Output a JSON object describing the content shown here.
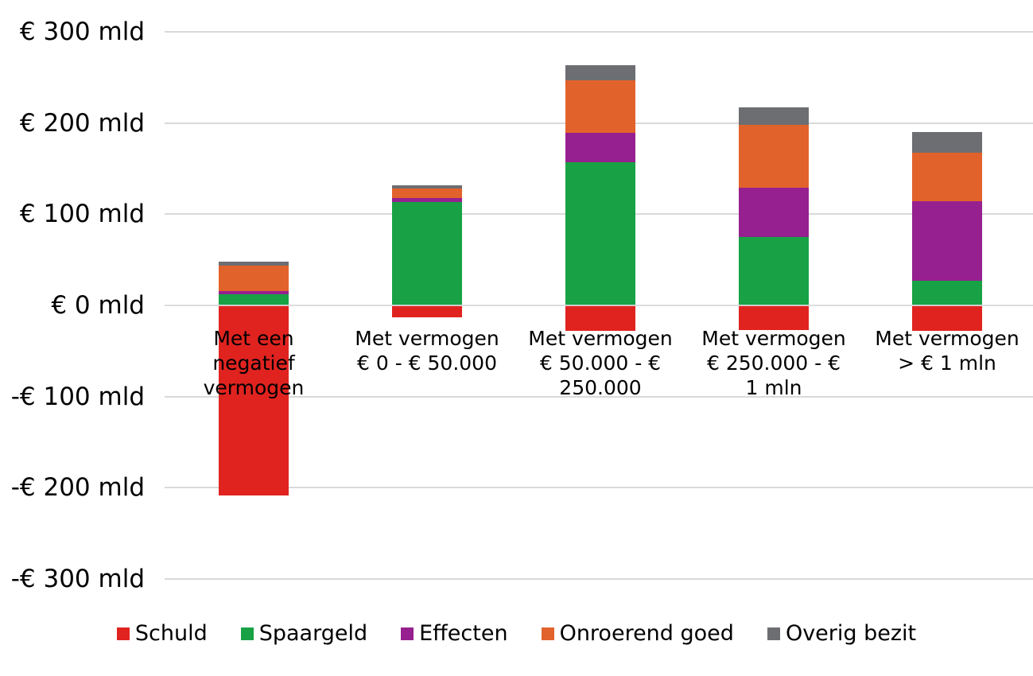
{
  "chart_data": {
    "type": "bar",
    "stacked": true,
    "title": "",
    "xlabel": "",
    "ylabel": "",
    "unit": "€ mld",
    "grid": true,
    "legend_position": "bottom",
    "ylim": [
      -300,
      300
    ],
    "categories": [
      "Met een negatief vermogen",
      "Met vermogen € 0 - € 50.000",
      "Met vermogen € 50.000 - € 250.000",
      "Met vermogen € 250.000 - € 1 mln",
      "Met vermogen > € 1 mln"
    ],
    "category_label_lines": [
      [
        "Met een",
        "negatief",
        "vermogen"
      ],
      [
        "Met vermogen",
        "€ 0 - € 50.000"
      ],
      [
        "Met vermogen",
        "€ 50.000 - €",
        "250.000"
      ],
      [
        "Met vermogen",
        "€ 250.000 - €",
        "1 mln"
      ],
      [
        "Met vermogen",
        "> € 1 mln"
      ]
    ],
    "series": [
      {
        "key": "schuld",
        "name": "Schuld",
        "color": "#e0231f",
        "values": [
          -208,
          -13,
          -28,
          -27,
          -28
        ]
      },
      {
        "key": "spaargeld",
        "name": "Spaargeld",
        "color": "#18a245",
        "values": [
          12,
          113,
          157,
          75,
          27
        ]
      },
      {
        "key": "effecten",
        "name": "Effecten",
        "color": "#96208f",
        "values": [
          4,
          5,
          32,
          54,
          87
        ]
      },
      {
        "key": "onroerend-goed",
        "name": "Onroerend goed",
        "color": "#e2622b",
        "values": [
          28,
          10,
          58,
          69,
          53
        ]
      },
      {
        "key": "overig-bezit",
        "name": "Overig bezit",
        "color": "#6d6e71",
        "values": [
          4,
          4,
          16,
          19,
          23
        ]
      }
    ],
    "yticks": [
      {
        "label": "€ 300 mld",
        "value": 300
      },
      {
        "label": "€ 200 mld",
        "value": 200
      },
      {
        "label": "€ 100 mld",
        "value": 100
      },
      {
        "label": "€ 0 mld",
        "value": 0
      },
      {
        "label": "-€ 100 mld",
        "value": -100
      },
      {
        "label": "-€ 200 mld",
        "value": -200
      },
      {
        "label": "-€ 300 mld",
        "value": -300
      }
    ]
  },
  "colors": {
    "background": "#ffffff",
    "gridline": "#d9d9d9",
    "text": "#000000"
  }
}
